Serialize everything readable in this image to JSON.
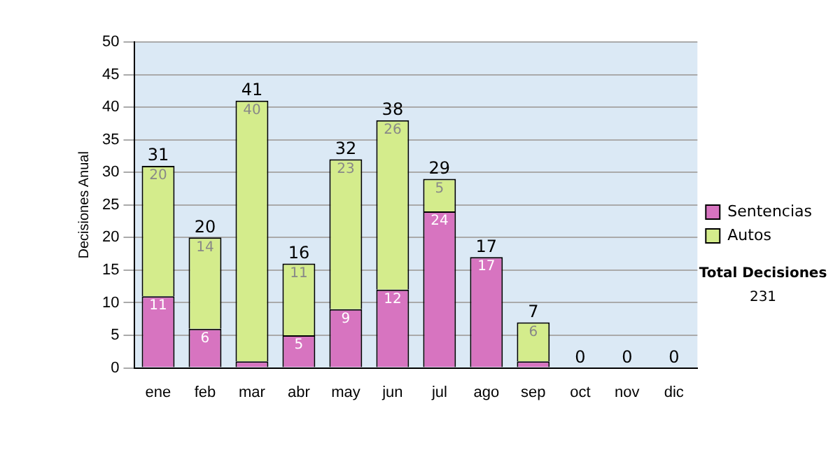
{
  "chart_data": {
    "type": "bar",
    "stacked": true,
    "ylabel": "Decisiones Anual",
    "categories": [
      "ene",
      "feb",
      "mar",
      "abr",
      "may",
      "jun",
      "jul",
      "ago",
      "sep",
      "oct",
      "nov",
      "dic"
    ],
    "series": [
      {
        "name": "Sentencias",
        "color": "#d774c0",
        "values": [
          11,
          6,
          1,
          5,
          9,
          12,
          24,
          17,
          1,
          0,
          0,
          0
        ],
        "value_labels": [
          "11",
          "6",
          null,
          "5",
          "9",
          "12",
          "24",
          "17",
          null,
          null,
          null,
          null
        ]
      },
      {
        "name": "Autos",
        "color": "#d4ec8c",
        "values": [
          20,
          14,
          40,
          11,
          23,
          26,
          5,
          0,
          6,
          0,
          0,
          0
        ],
        "value_labels": [
          "20",
          "14",
          "40",
          "11",
          "23",
          "26",
          "5",
          null,
          "6",
          null,
          null,
          null
        ]
      }
    ],
    "totals": [
      "31",
      "20",
      "41",
      "16",
      "32",
      "38",
      "29",
      "17",
      "7",
      "0",
      "0",
      "0"
    ],
    "ylim": [
      0,
      50
    ],
    "yticks": [
      0,
      5,
      10,
      15,
      20,
      25,
      30,
      35,
      40,
      45,
      50
    ],
    "grid": "y",
    "legend": "right",
    "annotations": [
      "Total Decisiones",
      "231"
    ]
  }
}
